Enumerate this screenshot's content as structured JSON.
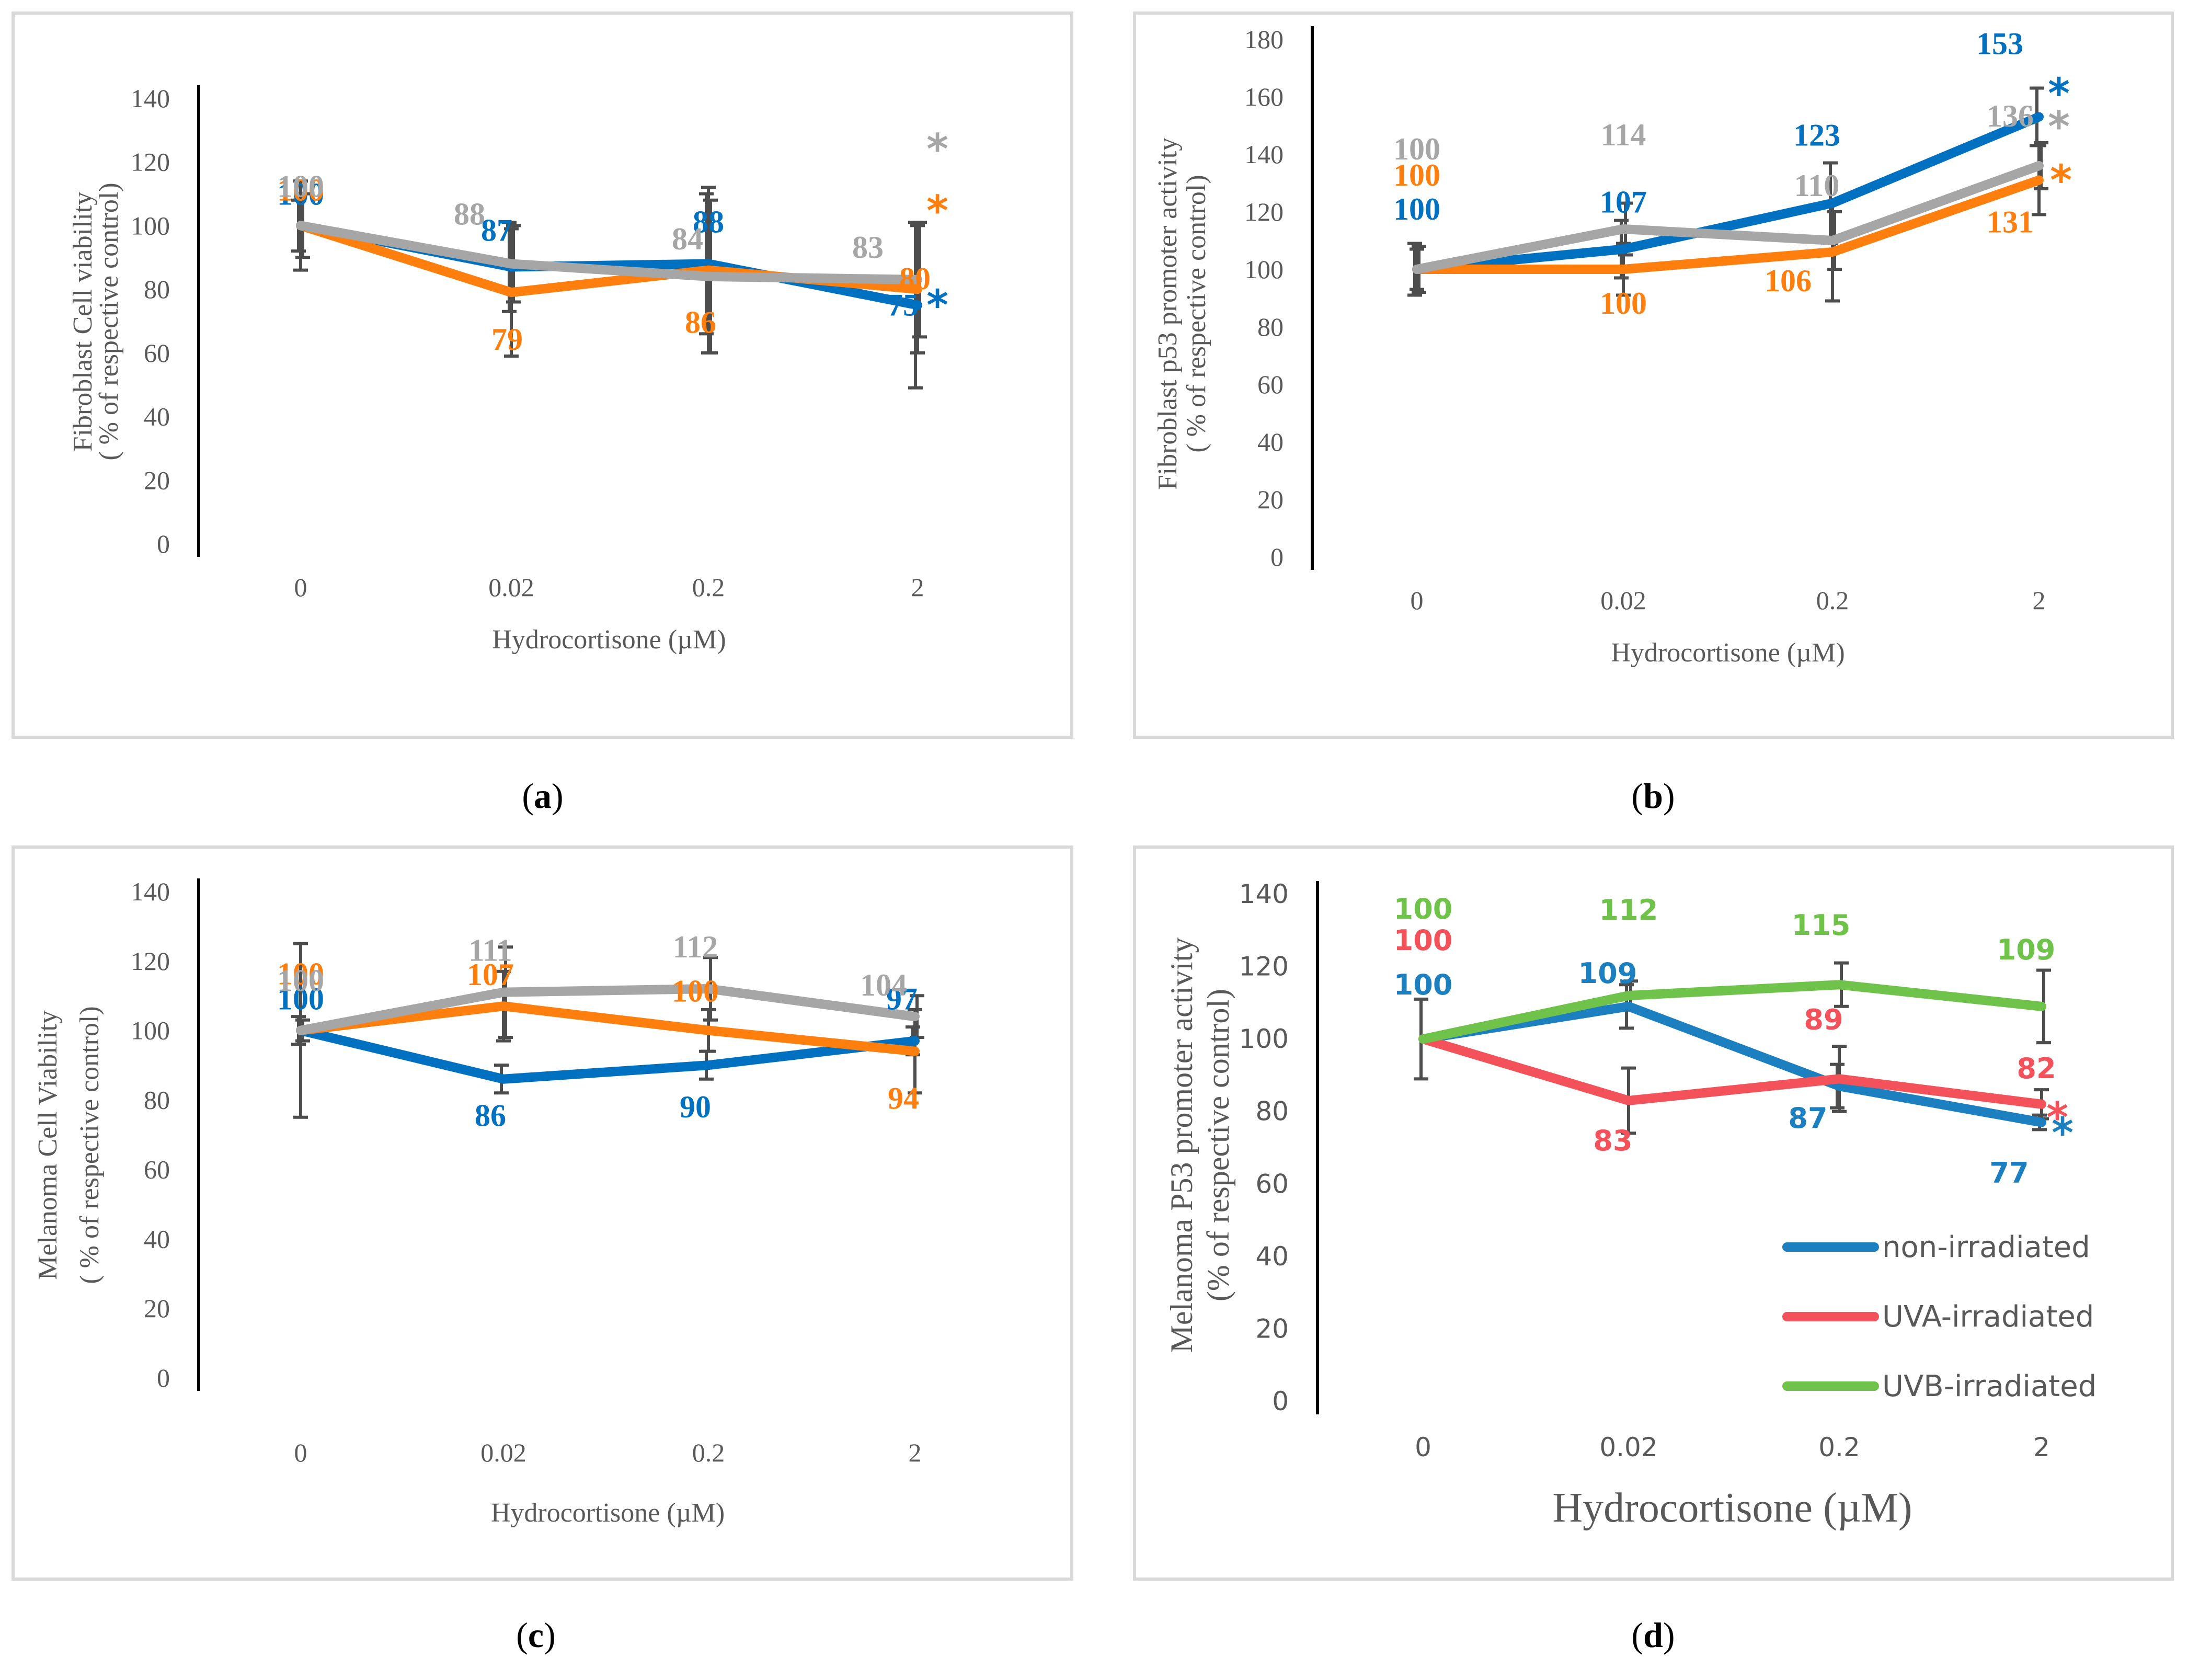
{
  "chart_data": [
    {
      "panel": "(a)",
      "type": "line",
      "categories": [
        "0",
        "0.02",
        "0.2",
        "2"
      ],
      "ylabel_line1": "Fibroblast Cell viability",
      "ylabel_line2": "( % of respective control)",
      "xlabel": "Hydrocortisone (µM)",
      "ylim": [
        0,
        140
      ],
      "yticks": [
        "0",
        "20",
        "40",
        "60",
        "80",
        "100",
        "120",
        "140"
      ],
      "series": [
        {
          "name": "non-irradiated",
          "color": "#0070c0",
          "values": [
            100,
            87,
            88,
            75
          ],
          "labels": [
            "100",
            "87",
            "88",
            "75"
          ],
          "errors": [
            8,
            14,
            22,
            26
          ],
          "star": "*"
        },
        {
          "name": "UVA-irradiated",
          "color": "#ff7f0e",
          "values": [
            100,
            79,
            86,
            80
          ],
          "labels": [
            "100",
            "79",
            "86",
            "80"
          ],
          "errors": [
            14,
            20,
            26,
            20
          ],
          "star": "*"
        },
        {
          "name": "UVB-irradiated",
          "color": "#a6a6a6",
          "values": [
            100,
            88,
            84,
            83
          ],
          "labels": [
            "100",
            "88",
            "84",
            "83"
          ],
          "errors": [
            10,
            12,
            24,
            18
          ],
          "star": "*"
        }
      ]
    },
    {
      "panel": "(b)",
      "type": "line",
      "categories": [
        "0",
        "0.02",
        "0.2",
        "2"
      ],
      "ylabel_line1": "Fibroblast p53 promoter activity",
      "ylabel_line2": "( % of respective control)",
      "xlabel": "Hydrocortisone (µM)",
      "ylim": [
        0,
        180
      ],
      "yticks": [
        "0",
        "20",
        "40",
        "60",
        "80",
        "100",
        "120",
        "140",
        "160",
        "180"
      ],
      "series": [
        {
          "name": "non-irradiated",
          "color": "#0070c0",
          "values": [
            100,
            107,
            123,
            153
          ],
          "labels": [
            "100",
            "107",
            "123",
            "153"
          ],
          "errors": [
            9,
            10,
            14,
            10
          ],
          "star": "*"
        },
        {
          "name": "UVA-irradiated",
          "color": "#ff7f0e",
          "values": [
            100,
            100,
            106,
            131
          ],
          "labels": [
            "100",
            "100",
            "106",
            "131"
          ],
          "errors": [
            7,
            9,
            17,
            12
          ],
          "star": "*"
        },
        {
          "name": "UVB-irradiated",
          "color": "#a6a6a6",
          "values": [
            100,
            114,
            110,
            136
          ],
          "labels": [
            "100",
            "114",
            "110",
            "136"
          ],
          "errors": [
            8,
            9,
            10,
            8
          ],
          "star": "*"
        }
      ]
    },
    {
      "panel": "(c)",
      "type": "line",
      "categories": [
        "0",
        "0.02",
        "0.2",
        "2"
      ],
      "ylabel_line1": "Melanoma Cell Viability",
      "ylabel_line2": "( % of respective control)",
      "xlabel": "Hydrocortisone (µM)",
      "ylim": [
        0,
        140
      ],
      "yticks": [
        "0",
        "20",
        "40",
        "60",
        "80",
        "100",
        "120",
        "140"
      ],
      "series": [
        {
          "name": "non-irradiated",
          "color": "#0070c0",
          "values": [
            100,
            86,
            90,
            97
          ],
          "labels": [
            "100",
            "86",
            "90",
            "97"
          ],
          "errors": [
            4,
            4,
            4,
            4
          ],
          "star": ""
        },
        {
          "name": "UVA-irradiated",
          "color": "#ff7f0e",
          "values": [
            100,
            107,
            100,
            94
          ],
          "labels": [
            "100",
            "107",
            "100",
            "94"
          ],
          "errors": [
            25,
            10,
            6,
            12
          ],
          "star": ""
        },
        {
          "name": "UVB-irradiated",
          "color": "#a6a6a6",
          "values": [
            100,
            111,
            112,
            104
          ],
          "labels": [
            "100",
            "111",
            "112",
            "104"
          ],
          "errors": [
            3,
            13,
            9,
            6
          ],
          "star": ""
        }
      ]
    },
    {
      "panel": "(d)",
      "type": "line",
      "categories": [
        "0",
        "0.02",
        "0.2",
        "2"
      ],
      "ylabel_line1": "Melanoma P53 promoter activity",
      "ylabel_line2": "(% of respective control)",
      "xlabel": "Hydrocortisone (µM)",
      "ylim": [
        0,
        140
      ],
      "yticks": [
        "0",
        "20",
        "40",
        "60",
        "80",
        "100",
        "120",
        "140"
      ],
      "legend": "bottom-right",
      "series": [
        {
          "name": "non-irradiated",
          "color": "#1b7fc0",
          "values": [
            100,
            109,
            87,
            77
          ],
          "labels": [
            "100",
            "109",
            "87",
            "77"
          ],
          "errors": [
            11,
            6,
            6,
            2
          ],
          "star": "*"
        },
        {
          "name": "UVA-irradiated",
          "color": "#f4525b",
          "values": [
            100,
            83,
            89,
            82
          ],
          "labels": [
            "100",
            "83",
            "89",
            "82"
          ],
          "errors": [
            0,
            9,
            9,
            4
          ],
          "star": "*"
        },
        {
          "name": "UVB-irradiated",
          "color": "#70c34a",
          "values": [
            100,
            112,
            115,
            109
          ],
          "labels": [
            "100",
            "112",
            "115",
            "109"
          ],
          "errors": [
            0,
            4,
            6,
            10
          ],
          "star": ""
        }
      ]
    }
  ]
}
